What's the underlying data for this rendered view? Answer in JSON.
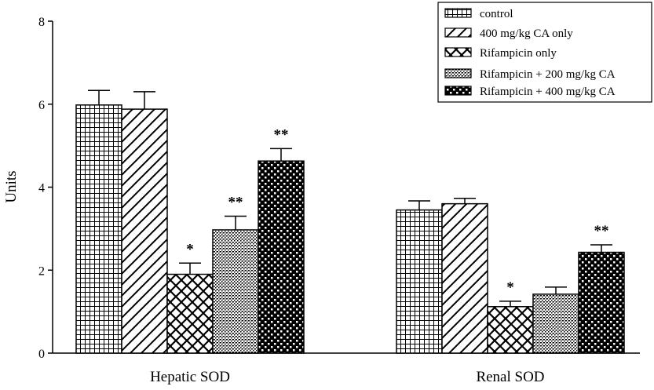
{
  "chart_data": {
    "type": "bar",
    "title": "",
    "xlabel": "",
    "ylabel": "Units",
    "ylim": [
      0,
      8
    ],
    "yticks": [
      "0",
      "2",
      "4",
      "6",
      "8"
    ],
    "categories": [
      "Hepatic SOD",
      "Renal SOD"
    ],
    "legend_position": "top-right",
    "grid": false,
    "series": [
      {
        "name": "control",
        "pattern": "grid-pattern",
        "values": [
          5.98,
          3.45
        ],
        "errors": [
          0.35,
          0.22
        ],
        "annotations": [
          "",
          ""
        ]
      },
      {
        "name": "400 mg/kg CA only",
        "pattern": "diagonal-pattern",
        "values": [
          5.88,
          3.6
        ],
        "errors": [
          0.42,
          0.13
        ],
        "annotations": [
          "",
          ""
        ]
      },
      {
        "name": "Rifampicin only",
        "pattern": "crosshatch-pattern",
        "values": [
          1.9,
          1.12
        ],
        "errors": [
          0.27,
          0.13
        ],
        "annotations": [
          "*",
          "*"
        ]
      },
      {
        "name": "Rifampicin + 200 mg/kg CA",
        "pattern": "dotted-pattern",
        "values": [
          2.97,
          1.42
        ],
        "errors": [
          0.33,
          0.17
        ],
        "annotations": [
          "**",
          ""
        ]
      },
      {
        "name": "Rifampicin + 400 mg/kg CA",
        "pattern": "checker-pattern",
        "values": [
          4.63,
          2.43
        ],
        "errors": [
          0.3,
          0.18
        ],
        "annotations": [
          "**",
          "**"
        ]
      }
    ]
  }
}
